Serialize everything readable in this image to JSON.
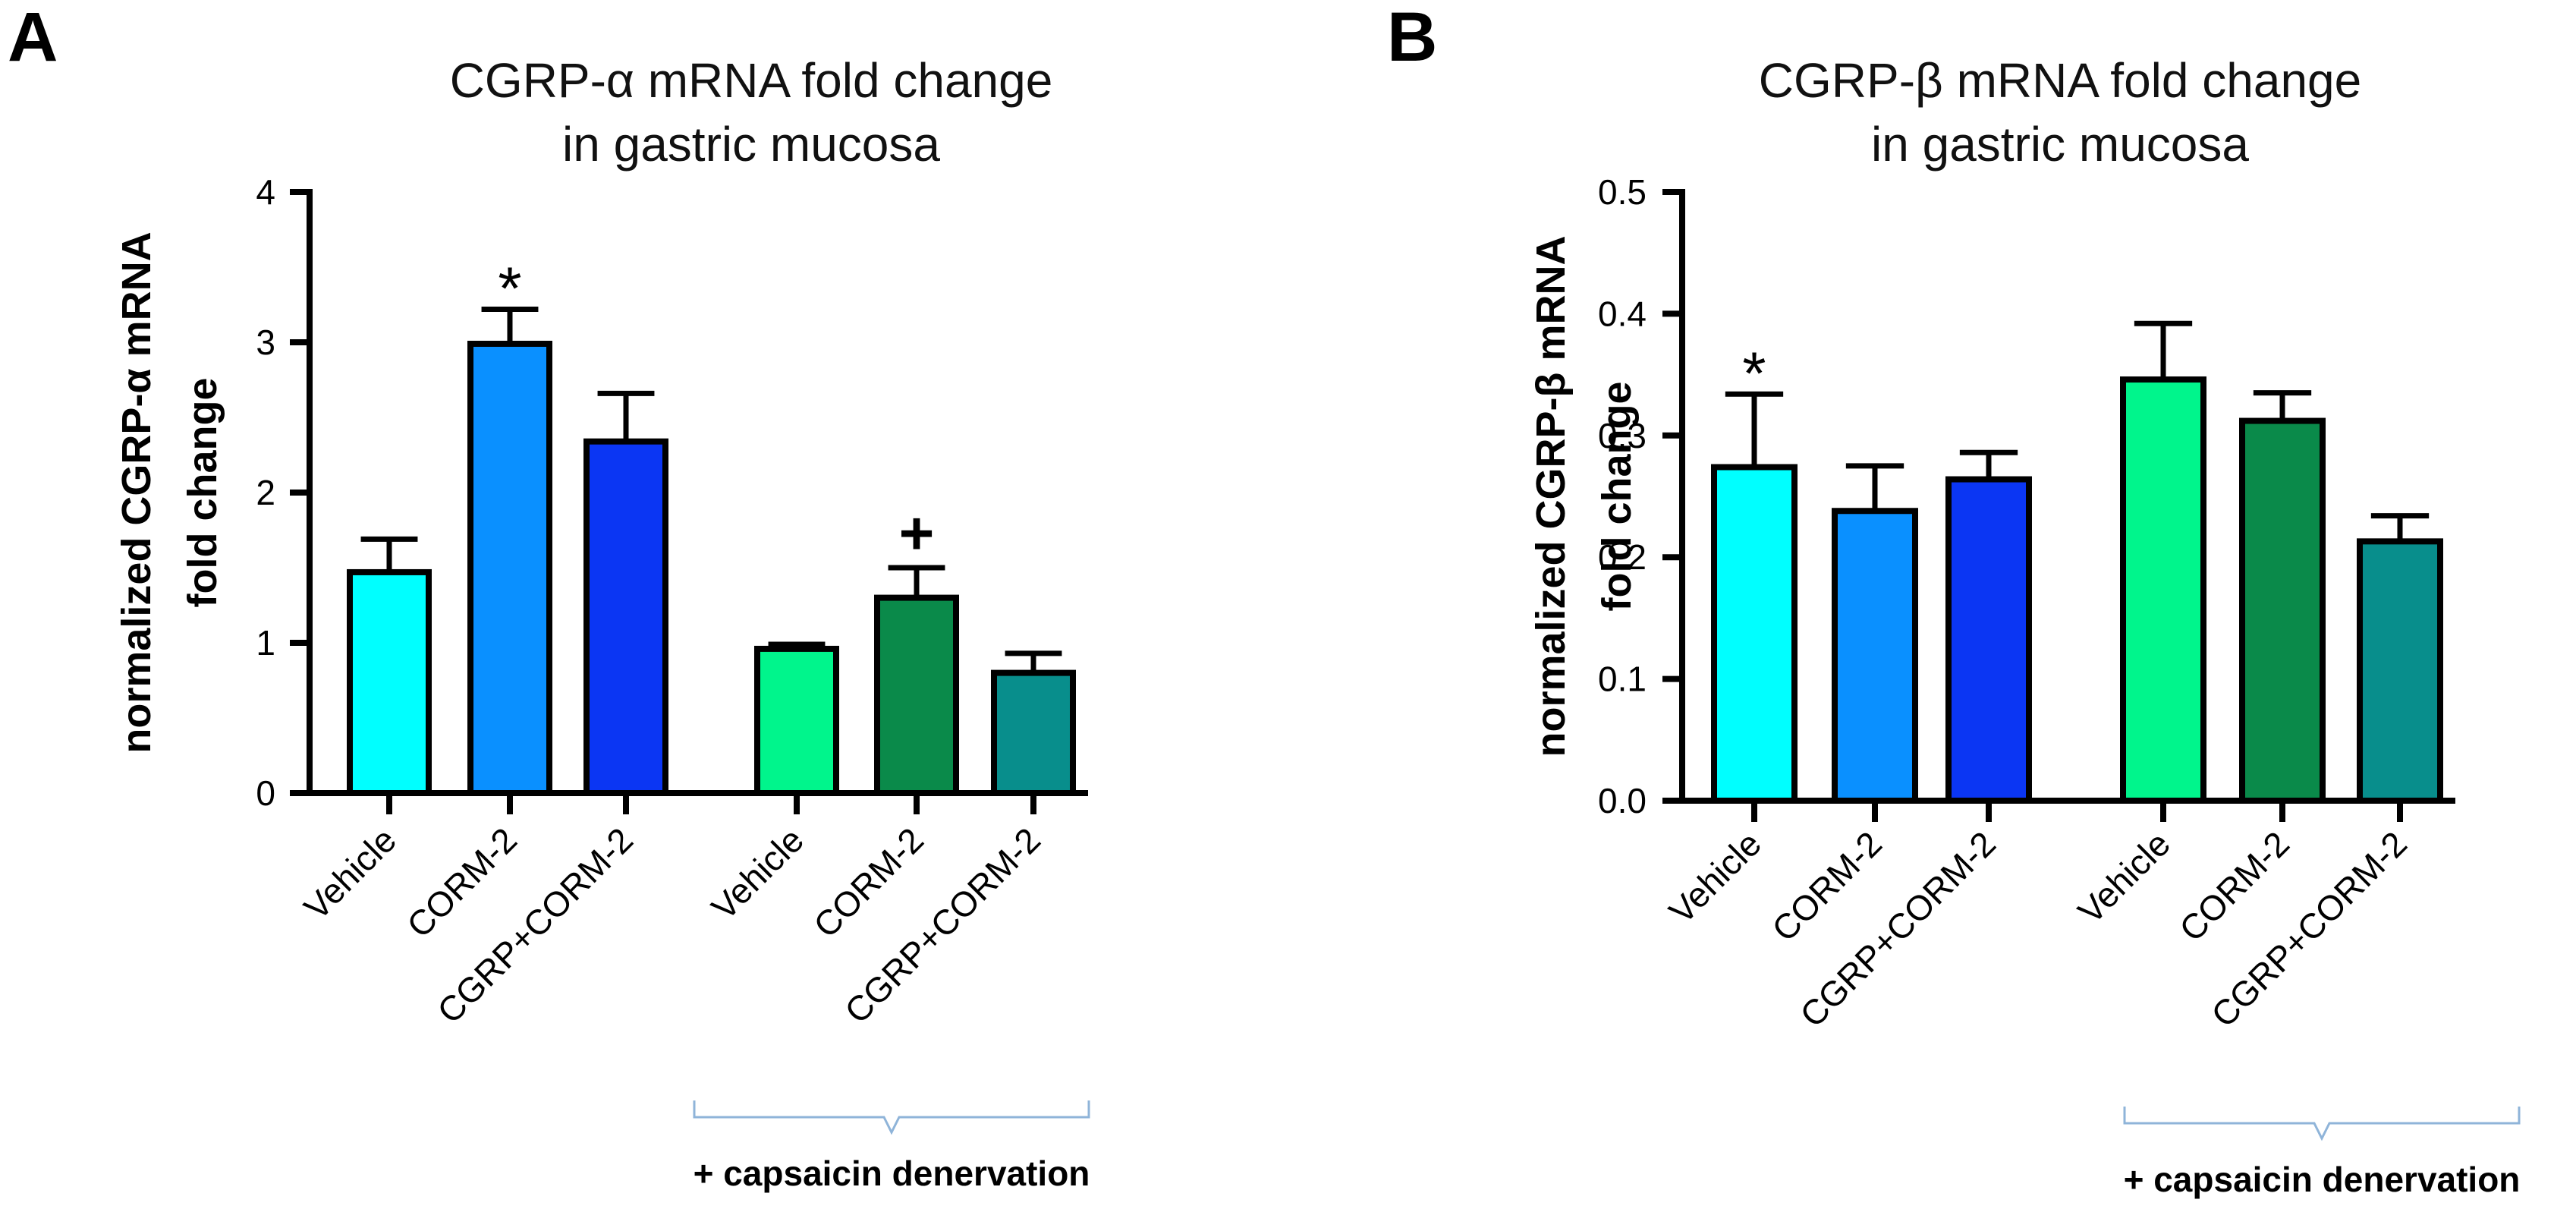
{
  "chart_data": [
    {
      "type": "bar",
      "panel": "A",
      "title": [
        "CGRP-α mRNA fold change",
        "in gastric mucosa"
      ],
      "ylabel": [
        "normalized CGRP-α mRNA",
        "fold change"
      ],
      "ylim": [
        0,
        4
      ],
      "yticks": [
        0,
        1,
        2,
        3,
        4
      ],
      "ytick_labels": [
        "0",
        "1",
        "2",
        "3",
        "4"
      ],
      "categories": [
        "Vehicle",
        "CORM-2",
        "CGRP+CORM-2",
        "Vehicle",
        "CORM-2",
        "CGRP+CORM-2"
      ],
      "values": [
        1.47,
        2.99,
        2.34,
        0.96,
        1.3,
        0.8
      ],
      "errors": [
        0.22,
        0.23,
        0.32,
        0.03,
        0.2,
        0.13
      ],
      "colors": [
        "#00ffff",
        "#0a90ff",
        "#0b36f3",
        "#00f58c",
        "#0a8a4a",
        "#088e8c"
      ],
      "markers": [
        "",
        "*",
        "",
        "",
        "+",
        ""
      ],
      "group_label": "+ capsaicin denervation",
      "group_span": [
        3,
        5
      ]
    },
    {
      "type": "bar",
      "panel": "B",
      "title": [
        "CGRP-β mRNA fold change",
        "in gastric mucosa"
      ],
      "ylabel": [
        "normalized CGRP-β mRNA",
        "fold change"
      ],
      "ylim": [
        0,
        0.5
      ],
      "yticks": [
        0,
        0.1,
        0.2,
        0.3,
        0.4,
        0.5
      ],
      "ytick_labels": [
        "0.0",
        "0.1",
        "0.2",
        "0.3",
        "0.4",
        "0.5"
      ],
      "categories": [
        "Vehicle",
        "CORM-2",
        "CGRP+CORM-2",
        "Vehicle",
        "CORM-2",
        "CGRP+CORM-2"
      ],
      "values": [
        0.274,
        0.238,
        0.264,
        0.346,
        0.312,
        0.213
      ],
      "errors": [
        0.06,
        0.037,
        0.022,
        0.046,
        0.023,
        0.021
      ],
      "colors": [
        "#00ffff",
        "#0a90ff",
        "#0b36f3",
        "#00f58c",
        "#0a8a4a",
        "#088e8c"
      ],
      "markers": [
        "*",
        "",
        "",
        "",
        "",
        ""
      ],
      "group_label": "+ capsaicin denervation",
      "group_span": [
        3,
        5
      ]
    }
  ]
}
